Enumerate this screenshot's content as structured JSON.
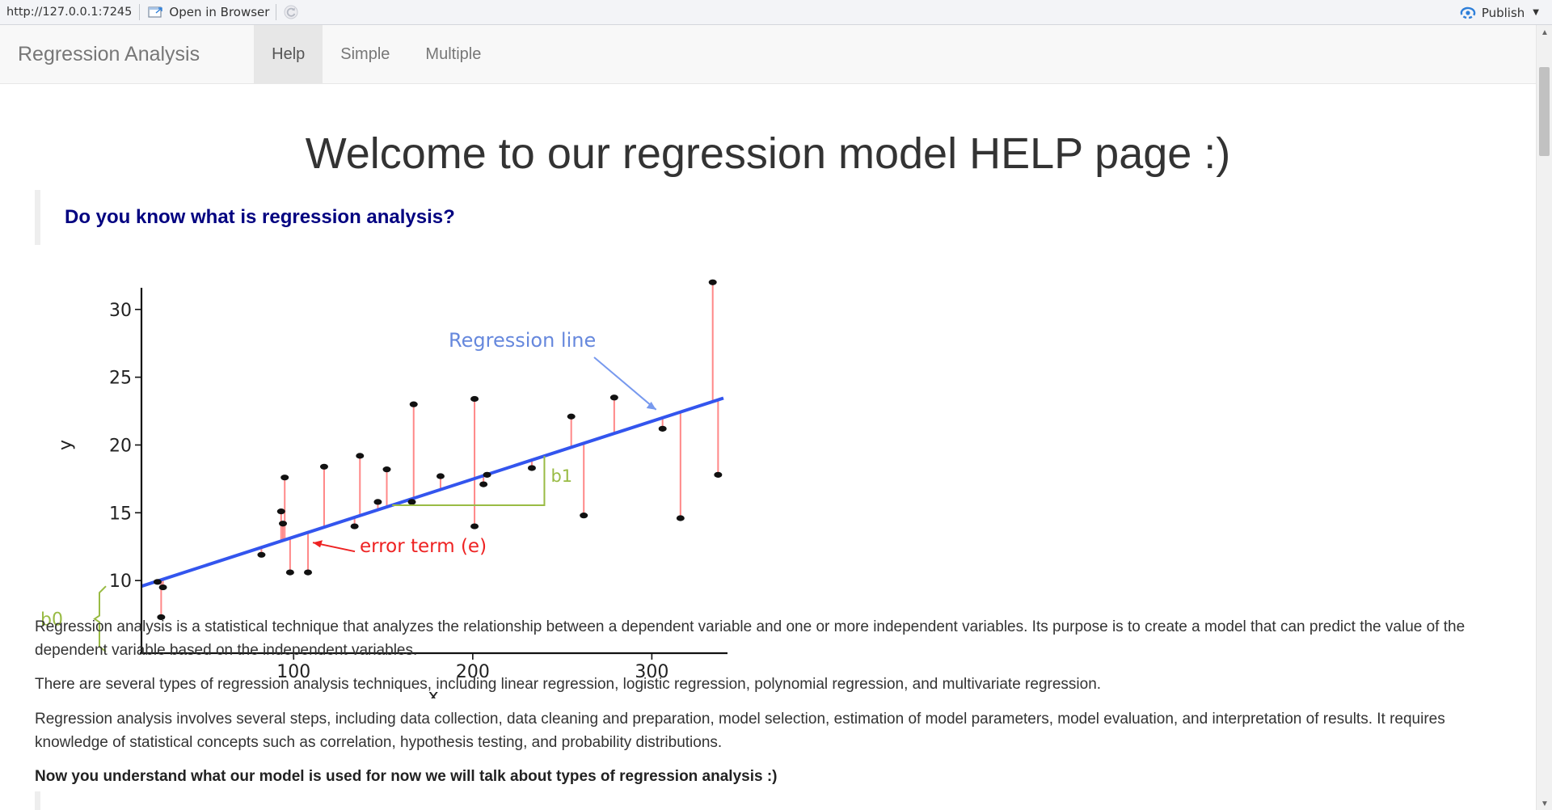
{
  "topbar": {
    "url": "http://127.0.0.1:7245",
    "open_in_browser": "Open in Browser",
    "publish": "Publish",
    "accent_color": "#2e7fd9"
  },
  "navbar": {
    "brand": "Regression Analysis",
    "tabs": [
      {
        "label": "Help",
        "active": true
      },
      {
        "label": "Simple",
        "active": false
      },
      {
        "label": "Multiple",
        "active": false
      }
    ]
  },
  "main": {
    "title": "Welcome to our regression model HELP page :)",
    "question": "Do you know what is regression analysis?",
    "question_color": "#000080",
    "paragraphs": [
      "Regression analysis is a statistical technique that analyzes the relationship between a dependent variable and one or more independent variables. Its purpose is to create a model that can predict the value of the dependent variable based on the independent variables.",
      "There are several types of regression analysis techniques, including linear regression, logistic regression, polynomial regression, and multivariate regression.",
      "Regression analysis involves several steps, including data collection, data cleaning and preparation, model selection, estimation of model parameters, model evaluation, and interpretation of results. It requires knowledge of statistical concepts such as correlation, hypothesis testing, and probability distributions."
    ],
    "bold_line": "Now you understand what our model is used for now we will talk about types of regression analysis :)"
  },
  "chart_data": {
    "type": "scatter",
    "xlabel": "x",
    "ylabel": "y",
    "xlim": [
      15,
      340
    ],
    "ylim": [
      5,
      31
    ],
    "xticks": [
      100,
      200,
      300
    ],
    "yticks": [
      10,
      15,
      20,
      25,
      30
    ],
    "regression_line": {
      "intercept": 8.94,
      "slope": 0.0427,
      "color": "#3355ee"
    },
    "residual_color": "#ff8888",
    "annotation_color": "#99bb44",
    "annotations": {
      "line_label": "Regression line",
      "error_label": "error term (e)",
      "slope_label": "b1",
      "intercept_label": "b0"
    },
    "points": [
      {
        "x": 24,
        "y": 9.9
      },
      {
        "x": 26,
        "y": 7.3
      },
      {
        "x": 27,
        "y": 9.5
      },
      {
        "x": 82,
        "y": 11.9
      },
      {
        "x": 93,
        "y": 15.1
      },
      {
        "x": 94,
        "y": 14.2
      },
      {
        "x": 95,
        "y": 17.6
      },
      {
        "x": 98,
        "y": 10.6
      },
      {
        "x": 108,
        "y": 10.6
      },
      {
        "x": 117,
        "y": 18.4
      },
      {
        "x": 134,
        "y": 14.0
      },
      {
        "x": 137,
        "y": 19.2
      },
      {
        "x": 147,
        "y": 15.8
      },
      {
        "x": 152,
        "y": 18.2
      },
      {
        "x": 166,
        "y": 15.8
      },
      {
        "x": 167,
        "y": 23.0
      },
      {
        "x": 182,
        "y": 17.7
      },
      {
        "x": 201,
        "y": 14.0
      },
      {
        "x": 201,
        "y": 23.4
      },
      {
        "x": 206,
        "y": 17.1
      },
      {
        "x": 208,
        "y": 17.8
      },
      {
        "x": 233,
        "y": 18.3
      },
      {
        "x": 255,
        "y": 22.1
      },
      {
        "x": 262,
        "y": 14.8
      },
      {
        "x": 279,
        "y": 23.5
      },
      {
        "x": 306,
        "y": 21.2
      },
      {
        "x": 316,
        "y": 14.6
      },
      {
        "x": 334,
        "y": 32.0
      },
      {
        "x": 337,
        "y": 17.8
      }
    ]
  }
}
